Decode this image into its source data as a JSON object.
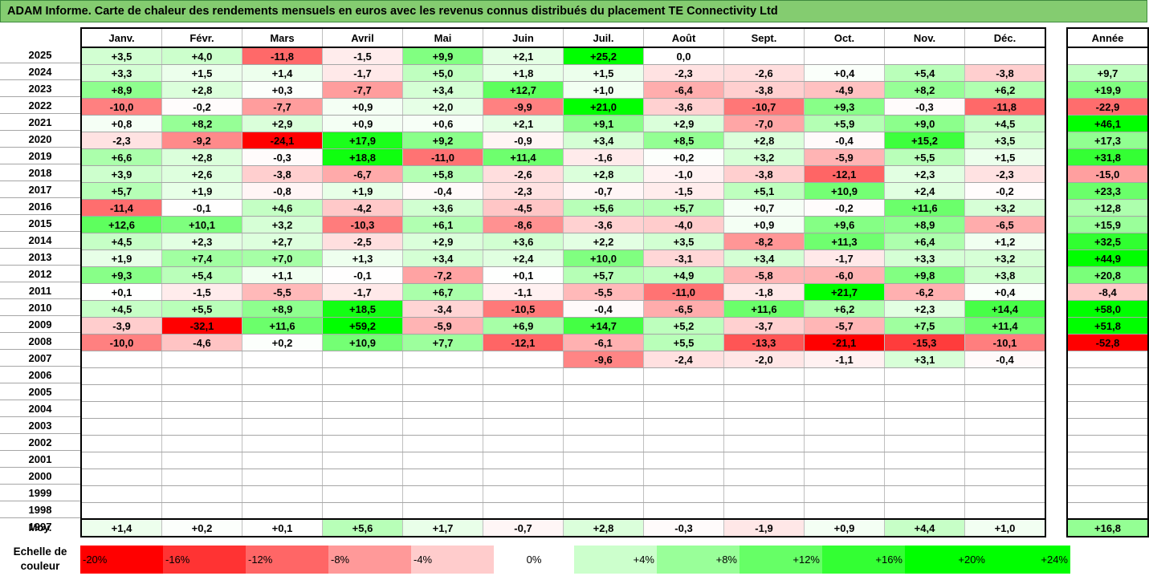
{
  "title": "ADAM Informe. Carte de chaleur des rendements mensuels en euros avec les revenus connus distribués du placement TE Connectivity Ltd",
  "chart_data": {
    "type": "heatmap",
    "title": "ADAM Informe. Carte de chaleur des rendements mensuels en euros avec les revenus connus distribués du placement TE Connectivity Ltd",
    "months": [
      "Janv.",
      "Févr.",
      "Mars",
      "Avril",
      "Mai",
      "Juin",
      "Juil.",
      "Août",
      "Sept.",
      "Oct.",
      "Nov.",
      "Déc."
    ],
    "annual_header": "Année",
    "rows": [
      {
        "year": "2025",
        "values": [
          "+3,5",
          "+4,0",
          "-11,8",
          "-1,5",
          "+9,9",
          "+2,1",
          "+25,2",
          "0,0",
          "",
          "",
          "",
          ""
        ],
        "annual": ""
      },
      {
        "year": "2024",
        "values": [
          "+3,3",
          "+1,5",
          "+1,4",
          "-1,7",
          "+5,0",
          "+1,8",
          "+1,5",
          "-2,3",
          "-2,6",
          "+0,4",
          "+5,4",
          "-3,8"
        ],
        "annual": "+9,7"
      },
      {
        "year": "2023",
        "values": [
          "+8,9",
          "+2,8",
          "+0,3",
          "-7,7",
          "+3,4",
          "+12,7",
          "+1,0",
          "-6,4",
          "-3,8",
          "-4,9",
          "+8,2",
          "+6,2"
        ],
        "annual": "+19,9"
      },
      {
        "year": "2022",
        "values": [
          "-10,0",
          "-0,2",
          "-7,7",
          "+0,9",
          "+2,0",
          "-9,9",
          "+21,0",
          "-3,6",
          "-10,7",
          "+9,3",
          "-0,3",
          "-11,8"
        ],
        "annual": "-22,9"
      },
      {
        "year": "2021",
        "values": [
          "+0,8",
          "+8,2",
          "+2,9",
          "+0,9",
          "+0,6",
          "+2,1",
          "+9,1",
          "+2,9",
          "-7,0",
          "+5,9",
          "+9,0",
          "+4,5"
        ],
        "annual": "+46,1"
      },
      {
        "year": "2020",
        "values": [
          "-2,3",
          "-9,2",
          "-24,1",
          "+17,9",
          "+9,2",
          "-0,9",
          "+3,4",
          "+8,5",
          "+2,8",
          "-0,4",
          "+15,2",
          "+3,5"
        ],
        "annual": "+17,3"
      },
      {
        "year": "2019",
        "values": [
          "+6,6",
          "+2,8",
          "-0,3",
          "+18,8",
          "-11,0",
          "+11,4",
          "-1,6",
          "+0,2",
          "+3,2",
          "-5,9",
          "+5,5",
          "+1,5"
        ],
        "annual": "+31,8"
      },
      {
        "year": "2018",
        "values": [
          "+3,9",
          "+2,6",
          "-3,8",
          "-6,7",
          "+5,8",
          "-2,6",
          "+2,8",
          "-1,0",
          "-3,8",
          "-12,1",
          "+2,3",
          "-2,3"
        ],
        "annual": "-15,0"
      },
      {
        "year": "2017",
        "values": [
          "+5,7",
          "+1,9",
          "-0,8",
          "+1,9",
          "-0,4",
          "-2,3",
          "-0,7",
          "-1,5",
          "+5,1",
          "+10,9",
          "+2,4",
          "-0,2"
        ],
        "annual": "+23,3"
      },
      {
        "year": "2016",
        "values": [
          "-11,4",
          "-0,1",
          "+4,6",
          "-4,2",
          "+3,6",
          "-4,5",
          "+5,6",
          "+5,7",
          "+0,7",
          "-0,2",
          "+11,6",
          "+3,2"
        ],
        "annual": "+12,8"
      },
      {
        "year": "2015",
        "values": [
          "+12,6",
          "+10,1",
          "+3,2",
          "-10,3",
          "+6,1",
          "-8,6",
          "-3,6",
          "-4,0",
          "+0,9",
          "+9,6",
          "+8,9",
          "-6,5"
        ],
        "annual": "+15,9"
      },
      {
        "year": "2014",
        "values": [
          "+4,5",
          "+2,3",
          "+2,7",
          "-2,5",
          "+2,9",
          "+3,6",
          "+2,2",
          "+3,5",
          "-8,2",
          "+11,3",
          "+6,4",
          "+1,2"
        ],
        "annual": "+32,5"
      },
      {
        "year": "2013",
        "values": [
          "+1,9",
          "+7,4",
          "+7,0",
          "+1,3",
          "+3,4",
          "+2,4",
          "+10,0",
          "-3,1",
          "+3,4",
          "-1,7",
          "+3,3",
          "+3,2"
        ],
        "annual": "+44,9"
      },
      {
        "year": "2012",
        "values": [
          "+9,3",
          "+5,4",
          "+1,1",
          "-0,1",
          "-7,2",
          "+0,1",
          "+5,7",
          "+4,9",
          "-5,8",
          "-6,0",
          "+9,8",
          "+3,8"
        ],
        "annual": "+20,8"
      },
      {
        "year": "2011",
        "values": [
          "+0,1",
          "-1,5",
          "-5,5",
          "-1,7",
          "+6,7",
          "-1,1",
          "-5,5",
          "-11,0",
          "-1,8",
          "+21,7",
          "-6,2",
          "+0,4"
        ],
        "annual": "-8,4"
      },
      {
        "year": "2010",
        "values": [
          "+4,5",
          "+5,5",
          "+8,9",
          "+18,5",
          "-3,4",
          "-10,5",
          "-0,4",
          "-6,5",
          "+11,6",
          "+6,2",
          "+2,3",
          "+14,4"
        ],
        "annual": "+58,0"
      },
      {
        "year": "2009",
        "values": [
          "-3,9",
          "-32,1",
          "+11,6",
          "+59,2",
          "-5,9",
          "+6,9",
          "+14,7",
          "+5,2",
          "-3,7",
          "-5,7",
          "+7,5",
          "+11,4"
        ],
        "annual": "+51,8"
      },
      {
        "year": "2008",
        "values": [
          "-10,0",
          "-4,6",
          "+0,2",
          "+10,9",
          "+7,7",
          "-12,1",
          "-6,1",
          "+5,5",
          "-13,3",
          "-21,1",
          "-15,3",
          "-10,1"
        ],
        "annual": "-52,8"
      },
      {
        "year": "2007",
        "values": [
          "",
          "",
          "",
          "",
          "",
          "",
          "-9,6",
          "-2,4",
          "-2,0",
          "-1,1",
          "+3,1",
          "-0,4"
        ],
        "annual": ""
      },
      {
        "year": "2006",
        "values": [
          "",
          "",
          "",
          "",
          "",
          "",
          "",
          "",
          "",
          "",
          "",
          ""
        ],
        "annual": ""
      },
      {
        "year": "2005",
        "values": [
          "",
          "",
          "",
          "",
          "",
          "",
          "",
          "",
          "",
          "",
          "",
          ""
        ],
        "annual": ""
      },
      {
        "year": "2004",
        "values": [
          "",
          "",
          "",
          "",
          "",
          "",
          "",
          "",
          "",
          "",
          "",
          ""
        ],
        "annual": ""
      },
      {
        "year": "2003",
        "values": [
          "",
          "",
          "",
          "",
          "",
          "",
          "",
          "",
          "",
          "",
          "",
          ""
        ],
        "annual": ""
      },
      {
        "year": "2002",
        "values": [
          "",
          "",
          "",
          "",
          "",
          "",
          "",
          "",
          "",
          "",
          "",
          ""
        ],
        "annual": ""
      },
      {
        "year": "2001",
        "values": [
          "",
          "",
          "",
          "",
          "",
          "",
          "",
          "",
          "",
          "",
          "",
          ""
        ],
        "annual": ""
      },
      {
        "year": "2000",
        "values": [
          "",
          "",
          "",
          "",
          "",
          "",
          "",
          "",
          "",
          "",
          "",
          ""
        ],
        "annual": ""
      },
      {
        "year": "1999",
        "values": [
          "",
          "",
          "",
          "",
          "",
          "",
          "",
          "",
          "",
          "",
          "",
          ""
        ],
        "annual": ""
      },
      {
        "year": "1998",
        "values": [
          "",
          "",
          "",
          "",
          "",
          "",
          "",
          "",
          "",
          "",
          "",
          ""
        ],
        "annual": ""
      },
      {
        "year": "1997",
        "values": [
          "",
          "",
          "",
          "",
          "",
          "",
          "",
          "",
          "",
          "",
          "",
          ""
        ],
        "annual": ""
      }
    ],
    "average": {
      "label": "Moy.",
      "values": [
        "+1,4",
        "+0,2",
        "+0,1",
        "+5,6",
        "+1,7",
        "-0,7",
        "+2,8",
        "-0,3",
        "-1,9",
        "+0,9",
        "+4,4",
        "+1,0"
      ],
      "annual": "+16,8"
    },
    "color_scale": {
      "label_line1": "Echelle de",
      "label_line2": "couleur",
      "stops": [
        {
          "label": "-20%",
          "value": -20,
          "color": "#ff0000"
        },
        {
          "label": "-16%",
          "value": -16,
          "color": "#ff3333"
        },
        {
          "label": "-12%",
          "value": -12,
          "color": "#ff6666"
        },
        {
          "label": "-8%",
          "value": -8,
          "color": "#ff9999"
        },
        {
          "label": "-4%",
          "value": -4,
          "color": "#ffcccc"
        },
        {
          "label": "0%",
          "value": 0,
          "color": "#ffffff"
        },
        {
          "label": "+4%",
          "value": 4,
          "color": "#ccffcc"
        },
        {
          "label": "+8%",
          "value": 8,
          "color": "#99ff99"
        },
        {
          "label": "+12%",
          "value": 12,
          "color": "#66ff66"
        },
        {
          "label": "+16%",
          "value": 16,
          "color": "#33ff33"
        },
        {
          "label": "+20%",
          "value": 20,
          "color": "#00ff00"
        },
        {
          "label": "+24%",
          "value": 24,
          "color": "#00ff00"
        }
      ]
    }
  }
}
